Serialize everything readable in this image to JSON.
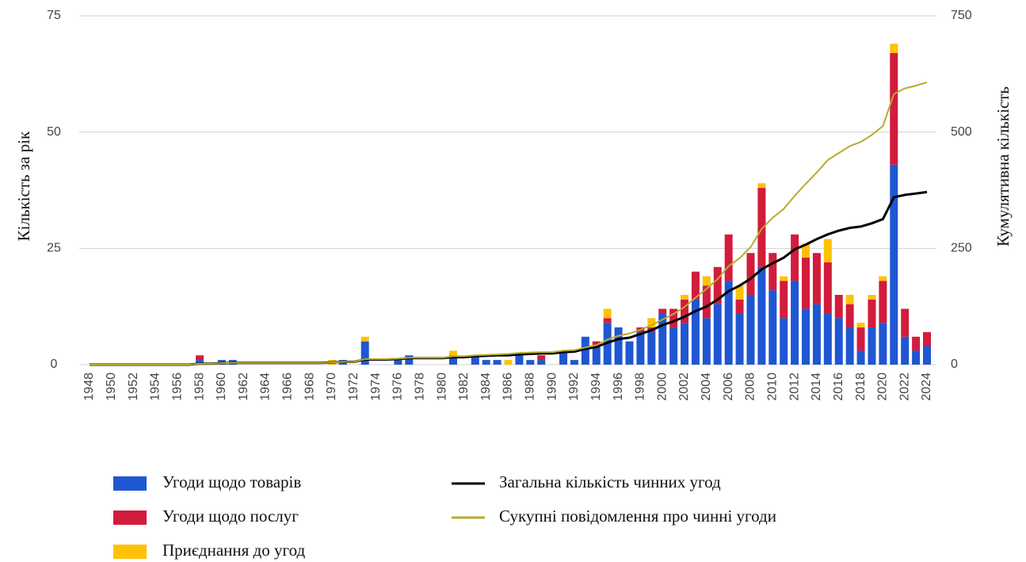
{
  "chart_data": {
    "type": "bar",
    "stacked": true,
    "categories": [
      "1948",
      null,
      "1950",
      null,
      "1952",
      null,
      "1954",
      null,
      "1956",
      null,
      "1958",
      null,
      "1960",
      null,
      "1962",
      null,
      "1964",
      null,
      "1966",
      null,
      "1968",
      null,
      "1970",
      null,
      "1972",
      null,
      "1974",
      null,
      "1976",
      null,
      "1978",
      null,
      "1980",
      null,
      "1982",
      null,
      "1984",
      null,
      "1986",
      null,
      "1988",
      null,
      "1990",
      null,
      "1992",
      null,
      "1994",
      null,
      "1996",
      null,
      "1998",
      null,
      "2000",
      null,
      "2002",
      null,
      "2004",
      null,
      "2006",
      null,
      "2008",
      null,
      "2010",
      null,
      "2012",
      null,
      "2014",
      null,
      "2016",
      null,
      "2018",
      null,
      "2020",
      null,
      "2022",
      null,
      "2024"
    ],
    "ylabel": "Кількість за рік",
    "y2label": "Кумулятивна кількість",
    "ylim": [
      0,
      75
    ],
    "yticks": [
      0,
      25,
      50,
      75
    ],
    "y2lim": [
      0,
      750
    ],
    "y2ticks": [
      0,
      250,
      500,
      750
    ],
    "grid": true,
    "series": [
      {
        "name": "Угоди щодо товарів",
        "type": "bar",
        "color": "#1f56d2",
        "values": [
          0,
          0,
          0,
          0,
          0,
          0,
          0,
          0,
          0,
          0,
          1,
          0,
          1,
          1,
          0,
          0,
          0,
          0,
          0,
          0,
          0,
          0,
          0,
          1,
          0,
          5,
          0,
          0,
          1,
          2,
          0,
          0,
          0,
          2,
          0,
          2,
          1,
          1,
          0,
          2,
          1,
          1,
          0,
          3,
          1,
          6,
          4,
          9,
          8,
          5,
          7,
          7,
          11,
          8,
          9,
          14,
          10,
          13,
          18,
          11,
          15,
          21,
          16,
          10,
          18,
          12,
          13,
          11,
          10,
          8,
          3,
          8,
          9,
          43,
          6,
          3,
          4
        ]
      },
      {
        "name": "Угоди щодо послуг",
        "type": "bar",
        "color": "#d21c3c",
        "values": [
          0,
          0,
          0,
          0,
          0,
          0,
          0,
          0,
          0,
          0,
          1,
          0,
          0,
          0,
          0,
          0,
          0,
          0,
          0,
          0,
          0,
          0,
          0,
          0,
          0,
          0,
          0,
          0,
          0,
          0,
          0,
          0,
          0,
          0,
          0,
          0,
          0,
          0,
          0,
          0,
          0,
          1,
          0,
          0,
          0,
          0,
          1,
          1,
          0,
          0,
          1,
          1,
          1,
          4,
          5,
          6,
          7,
          8,
          10,
          3,
          9,
          17,
          8,
          8,
          10,
          11,
          11,
          11,
          5,
          5,
          5,
          6,
          9,
          24,
          6,
          3,
          3
        ]
      },
      {
        "name": "Приєднання до угод",
        "type": "bar",
        "color": "#ffc107",
        "values": [
          0,
          0,
          0,
          0,
          0,
          0,
          0,
          0,
          0,
          0,
          0,
          0,
          0,
          0,
          0,
          0,
          0,
          0,
          0,
          0,
          0,
          0,
          1,
          0,
          0,
          1,
          0,
          0,
          0,
          0,
          0,
          0,
          0,
          1,
          0,
          0,
          0,
          0,
          1,
          0,
          0,
          0,
          0,
          0,
          0,
          0,
          0,
          2,
          0,
          0,
          0,
          2,
          0,
          0,
          1,
          0,
          2,
          0,
          0,
          3,
          0,
          1,
          0,
          1,
          0,
          3,
          0,
          5,
          0,
          2,
          1,
          1,
          1,
          2,
          0,
          0,
          0
        ]
      },
      {
        "name": "Загальна кількість чинних угод",
        "type": "line",
        "axis": "y2",
        "color": "#000000",
        "values": [
          0,
          0,
          0,
          0,
          0,
          0,
          0,
          0,
          0,
          0,
          2,
          2,
          3,
          4,
          4,
          4,
          4,
          4,
          4,
          4,
          4,
          4,
          5,
          6,
          6,
          11,
          11,
          11,
          12,
          14,
          14,
          14,
          14,
          16,
          16,
          18,
          19,
          20,
          20,
          22,
          23,
          24,
          24,
          27,
          28,
          34,
          38,
          47,
          55,
          58,
          66,
          74,
          85,
          93,
          103,
          115,
          125,
          140,
          158,
          170,
          185,
          205,
          218,
          230,
          248,
          258,
          270,
          280,
          288,
          294,
          297,
          304,
          313,
          360,
          365,
          368,
          371
        ]
      },
      {
        "name": "Сукупні повідомлення про чинні угоди",
        "type": "line",
        "axis": "y2",
        "color": "#b8aa2e",
        "values": [
          0,
          0,
          0,
          0,
          0,
          0,
          0,
          0,
          0,
          0,
          2,
          2,
          3,
          4,
          4,
          4,
          4,
          4,
          4,
          4,
          4,
          4,
          5,
          6,
          6,
          12,
          12,
          12,
          13,
          15,
          15,
          15,
          15,
          18,
          18,
          20,
          21,
          22,
          23,
          25,
          26,
          27,
          27,
          30,
          31,
          37,
          42,
          54,
          62,
          67,
          75,
          85,
          97,
          109,
          124,
          144,
          163,
          184,
          212,
          229,
          253,
          292,
          316,
          335,
          363,
          389,
          413,
          440,
          455,
          470,
          479,
          494,
          513,
          582,
          594,
          600,
          607
        ]
      }
    ]
  }
}
